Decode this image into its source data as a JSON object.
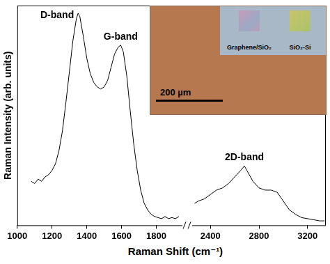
{
  "chart_data": [
    {
      "type": "line",
      "ylabel": "Raman Intensity (arb. units)",
      "xlabel": "Raman Shift (cm⁻¹)",
      "xlim": [
        1000,
        1950
      ],
      "xticks": [
        1000,
        1200,
        1400,
        1600,
        1800
      ],
      "ylim": [
        0,
        100
      ],
      "tick_labels": "x",
      "grid": false,
      "color": "#000000",
      "x": [
        1080,
        1100,
        1120,
        1140,
        1160,
        1180,
        1200,
        1220,
        1240,
        1260,
        1280,
        1300,
        1320,
        1340,
        1350,
        1360,
        1380,
        1400,
        1420,
        1440,
        1460,
        1480,
        1500,
        1520,
        1540,
        1560,
        1580,
        1595,
        1610,
        1630,
        1650,
        1670,
        1690,
        1710,
        1730,
        1750,
        1770,
        1790,
        1810,
        1830,
        1850,
        1870,
        1890,
        1910,
        1930
      ],
      "values": [
        20,
        19,
        21,
        20,
        22,
        23,
        25,
        28,
        34,
        43,
        56,
        70,
        84,
        94,
        96.5,
        95,
        86,
        76,
        69,
        65,
        63,
        62,
        63,
        66,
        72,
        78,
        81,
        82,
        79,
        68,
        52,
        37,
        25,
        16,
        10,
        7,
        5,
        4,
        3.5,
        3,
        4,
        3,
        3.5,
        3,
        4
      ],
      "annotations": [
        {
          "text": "D-band",
          "x": 1350,
          "y": 96.5
        },
        {
          "text": "G-band",
          "x": 1595,
          "y": 82
        }
      ]
    },
    {
      "type": "line",
      "xlim": [
        2250,
        3350
      ],
      "xticks": [
        2400,
        2800,
        3200
      ],
      "ylim": [
        0,
        100
      ],
      "tick_labels": "x",
      "grid": false,
      "color": "#000000",
      "x": [
        2270,
        2300,
        2350,
        2400,
        2450,
        2500,
        2550,
        2600,
        2650,
        2680,
        2700,
        2750,
        2800,
        2850,
        2900,
        2950,
        3000,
        3050,
        3100,
        3150,
        3200,
        3250,
        3300,
        3340
      ],
      "values": [
        10,
        11,
        12,
        14,
        16,
        17,
        19,
        22,
        25,
        27,
        25,
        20,
        17,
        16,
        16,
        15,
        11,
        7,
        5,
        3.5,
        3,
        2.5,
        2,
        2
      ],
      "annotations": [
        {
          "text": "2D-band",
          "x": 2680,
          "y": 27
        }
      ]
    }
  ],
  "inset": {
    "scale_bar": "200 µm",
    "samples": [
      "Graphene/SiO₂",
      "SiO₂-Si"
    ]
  }
}
